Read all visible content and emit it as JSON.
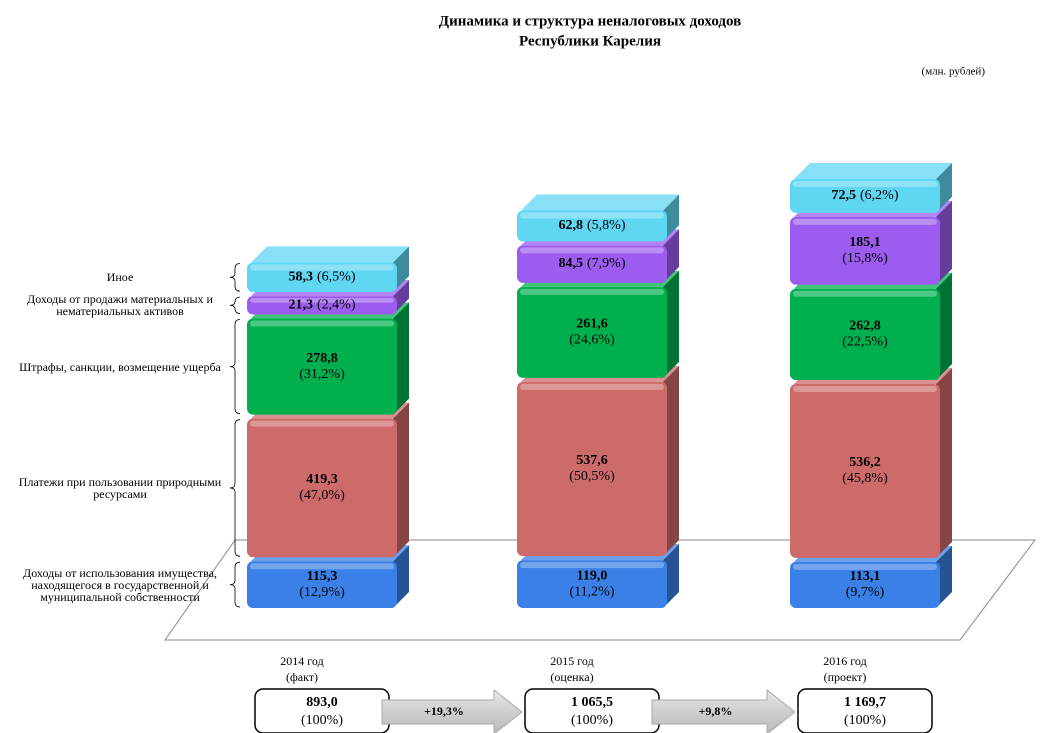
{
  "chart_data": {
    "type": "bar",
    "stacked": true,
    "title": [
      "Динамика и структура  неналоговых доходов",
      "Республики Карелия"
    ],
    "unit": "(млн. рублей)",
    "categories": [
      "2014 год",
      "2015 год",
      "2016 год"
    ],
    "category_notes": [
      "(факт)",
      "(оценка)",
      "(проект)"
    ],
    "series": [
      {
        "name": "Доходы от использования имущества, находящегося в государственной и муниципальной собственности",
        "color": "#3a80e6",
        "values": [
          115.3,
          119.0,
          113.1
        ],
        "value_labels": [
          "115,3",
          "119,0",
          "113,1"
        ],
        "share_labels": [
          "(12,9%)",
          "(11,2%)",
          "(9,7%)"
        ]
      },
      {
        "name": "Платежи при пользовании природными ресурсами",
        "color": "#cd6b6b",
        "values": [
          419.3,
          537.6,
          536.2
        ],
        "value_labels": [
          "419,3",
          "537,6",
          "536,2"
        ],
        "share_labels": [
          "(47,0%)",
          "(50,5%)",
          "(45,8%)"
        ]
      },
      {
        "name": "Штрафы, санкции, возмещение ущерба",
        "color": "#00b04f",
        "values": [
          278.8,
          261.6,
          262.8
        ],
        "value_labels": [
          "278,8",
          "261,6",
          "262,8"
        ],
        "share_labels": [
          "(31,2%)",
          "(24,6%)",
          "(22,5%)"
        ]
      },
      {
        "name": "Доходы от продажи материальных и нематериальных активов",
        "color": "#9d5cf0",
        "values": [
          21.3,
          84.5,
          185.1
        ],
        "value_labels": [
          "21,3",
          "84,5",
          "185,1"
        ],
        "share_labels": [
          "(2,4%)",
          "(7,9%)",
          "(15,8%)"
        ]
      },
      {
        "name": "Иное",
        "color": "#5fd6f2",
        "values": [
          58.3,
          62.8,
          72.5
        ],
        "value_labels": [
          "58,3",
          "62,8",
          "72,5"
        ],
        "share_labels": [
          "(6,5%)",
          "(5,8%)",
          "(6,2%)"
        ]
      }
    ],
    "totals": [
      "893,0",
      "1 065,5",
      "1 169,7"
    ],
    "total_share": "(100%)",
    "growth": [
      "+19,3%",
      "+9,8%"
    ]
  }
}
